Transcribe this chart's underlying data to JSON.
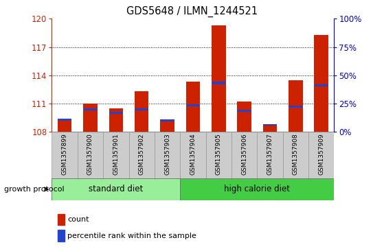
{
  "title": "GDS5648 / ILMN_1244521",
  "samples": [
    "GSM1357899",
    "GSM1357900",
    "GSM1357901",
    "GSM1357902",
    "GSM1357903",
    "GSM1357904",
    "GSM1357905",
    "GSM1357906",
    "GSM1357907",
    "GSM1357908",
    "GSM1357909"
  ],
  "red_tops": [
    109.4,
    111.0,
    110.5,
    112.3,
    109.3,
    113.3,
    119.3,
    111.2,
    108.8,
    113.5,
    118.3
  ],
  "blue_bottoms": [
    109.2,
    110.25,
    109.9,
    110.3,
    109.15,
    110.7,
    113.05,
    110.1,
    108.65,
    110.6,
    112.8
  ],
  "blue_heights": [
    0.22,
    0.22,
    0.22,
    0.22,
    0.18,
    0.22,
    0.28,
    0.22,
    0.18,
    0.22,
    0.25
  ],
  "ymin": 108,
  "ymax": 120,
  "yticks": [
    108,
    111,
    114,
    117,
    120
  ],
  "y2min": 0,
  "y2max": 100,
  "y2ticks": [
    0,
    25,
    50,
    75,
    100
  ],
  "y2ticklabels": [
    "0%",
    "25%",
    "50%",
    "75%",
    "100%"
  ],
  "bar_color": "#cc2200",
  "blue_color": "#2244cc",
  "standard_color": "#99ee99",
  "high_calorie_color": "#44cc44",
  "bg_color": "#cccccc",
  "label_color_left": "#cc2200",
  "label_color_right": "#0000cc",
  "bar_width": 0.55,
  "n_standard": 5,
  "n_high": 6
}
